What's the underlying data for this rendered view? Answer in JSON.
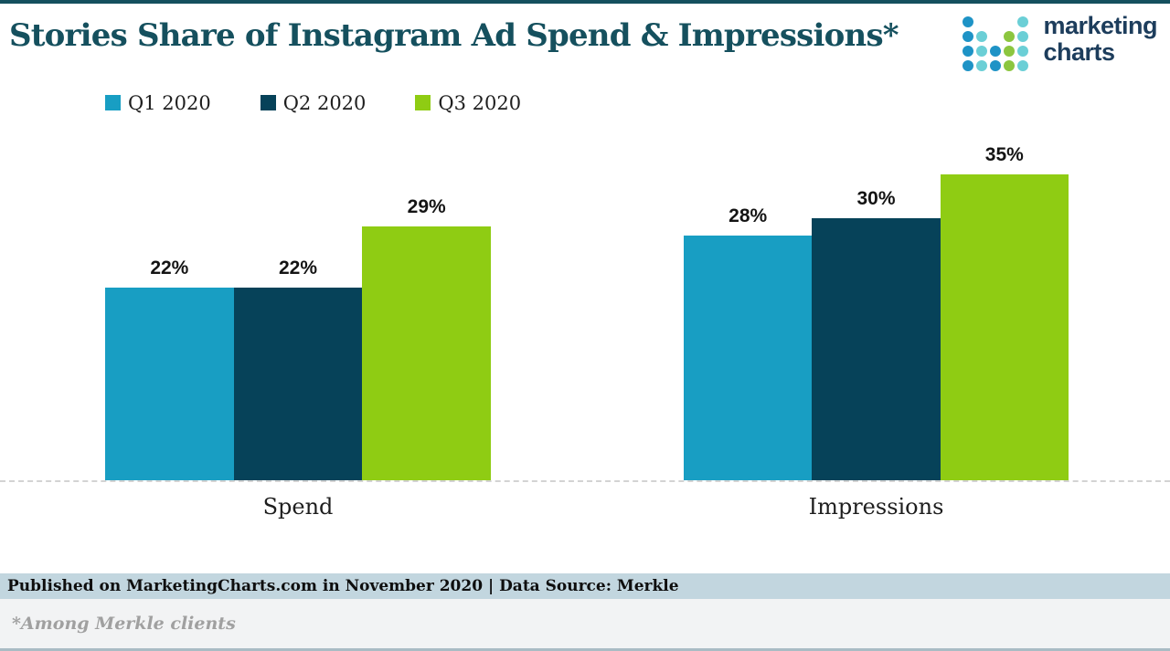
{
  "header": {
    "title": "Stories Share of Instagram Ad Spend & Impressions*",
    "logo": {
      "line1": "marketing",
      "line2": "charts",
      "dot_grid": [
        "b...t",
        "bt.gt",
        "btbgt",
        "btbgt"
      ],
      "dot_colors": {
        "b": "#1E93C6",
        "t": "#6BCFD6",
        "g": "#8CC63F"
      }
    }
  },
  "legend": [
    {
      "label": "Q1 2020",
      "color": "#189EC3"
    },
    {
      "label": "Q2 2020",
      "color": "#064259"
    },
    {
      "label": "Q3 2020",
      "color": "#8FCC13"
    }
  ],
  "chart_data": {
    "type": "bar",
    "title": "Stories Share of Instagram Ad Spend & Impressions*",
    "categories": [
      "Spend",
      "Impressions"
    ],
    "series": [
      {
        "name": "Q1 2020",
        "color": "#189EC3",
        "values": [
          22,
          28
        ]
      },
      {
        "name": "Q2 2020",
        "color": "#064259",
        "values": [
          22,
          30
        ]
      },
      {
        "name": "Q3 2020",
        "color": "#8FCC13",
        "values": [
          29,
          35
        ]
      }
    ],
    "value_suffix": "%",
    "unit": "percent",
    "ylim": [
      0,
      40
    ],
    "grid": false,
    "data_labels": true,
    "legend_position": "top-left",
    "baseline_style": "dashed"
  },
  "footer": {
    "published": "Published on MarketingCharts.com in November 2020 | Data Source: Merkle",
    "note": "*Among Merkle clients"
  },
  "colors": {
    "accent_teal": "#15505E",
    "logo_text": "#1D3D5C",
    "published_band_bg": "#C2D6DF",
    "note_band_bg": "#F2F3F4",
    "bottom_border": "#A9BCC4",
    "baseline_dash": "#D3D3D3",
    "label_text": "#141414"
  }
}
